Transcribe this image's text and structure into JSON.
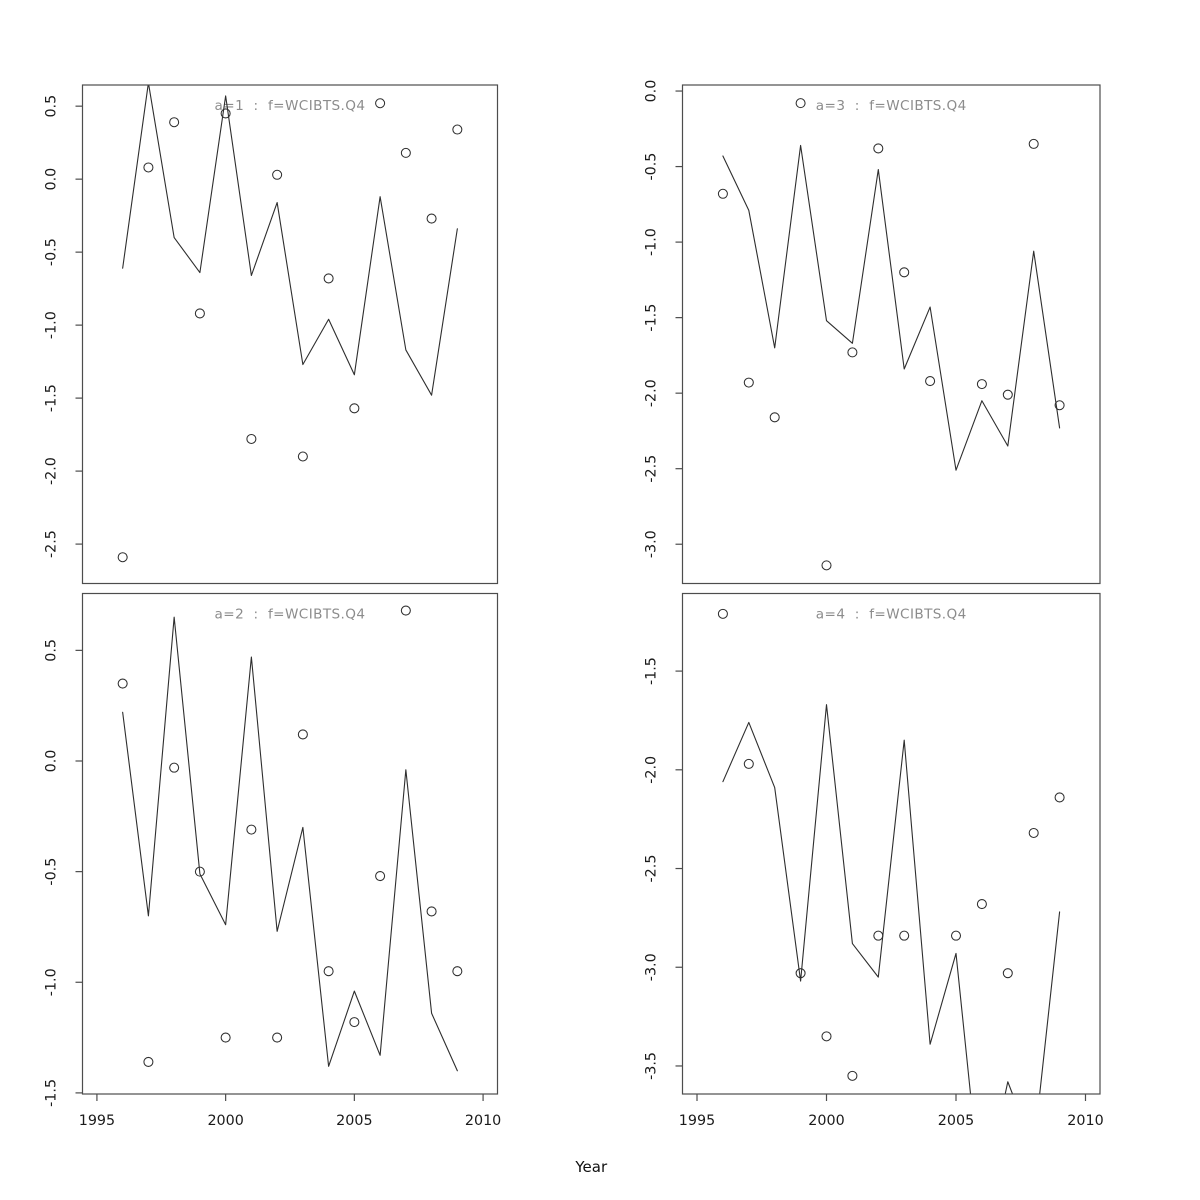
{
  "figure": {
    "xlabel": "Year",
    "background": "#ffffff",
    "colors": {
      "line": "#2e2e2e",
      "point_stroke": "#2e2e2e",
      "box": "#4d4d4d",
      "title_text": "#8c8c8c",
      "tick_text": "#1a1a1a"
    },
    "x_axis": {
      "tick_years": [
        1995,
        2000,
        2005,
        2010
      ],
      "tick_labels": [
        "1995",
        "2000",
        "2005",
        "2010"
      ]
    },
    "years": [
      1996,
      1997,
      1998,
      1999,
      2000,
      2001,
      2002,
      2003,
      2004,
      2005,
      2006,
      2007,
      2008,
      2009
    ]
  },
  "chart_data": [
    {
      "id": "a1",
      "type": "line+scatter",
      "title": "a=1  :  f=WCIBTS.Q4",
      "position": "top-left",
      "xlim": [
        1994.44,
        2010.56
      ],
      "ylim": [
        -2.77,
        0.645
      ],
      "x": [
        1996,
        1997,
        1998,
        1999,
        2000,
        2001,
        2002,
        2003,
        2004,
        2005,
        2006,
        2007,
        2008,
        2009
      ],
      "y_tick_values": [
        0.5,
        0.0,
        -0.5,
        -1.0,
        -1.5,
        -2.0,
        -2.5
      ],
      "y_tick_labels": [
        "0.5",
        "0.0",
        "-0.5",
        "-1.0",
        "-1.5",
        "-2.0",
        "-2.5"
      ],
      "show_x_axis": false,
      "series": [
        {
          "name": "model-line",
          "kind": "line",
          "values": [
            -0.61,
            0.66,
            -0.4,
            -0.64,
            0.57,
            -0.66,
            -0.16,
            -1.27,
            -0.96,
            -1.34,
            -0.12,
            -1.17,
            -1.48,
            -0.34
          ]
        },
        {
          "name": "observed-points",
          "kind": "points",
          "values": [
            -2.59,
            0.08,
            0.39,
            -0.92,
            0.45,
            -1.78,
            0.03,
            -1.9,
            -0.68,
            -1.57,
            0.52,
            0.18,
            -0.27,
            0.34
          ]
        }
      ]
    },
    {
      "id": "a2",
      "type": "line+scatter",
      "title": "a=2  :  f=WCIBTS.Q4",
      "position": "bottom-left",
      "xlim": [
        1994.44,
        2010.56
      ],
      "ylim": [
        -1.505,
        0.757
      ],
      "x": [
        1996,
        1997,
        1998,
        1999,
        2000,
        2001,
        2002,
        2003,
        2004,
        2005,
        2006,
        2007,
        2008,
        2009
      ],
      "y_tick_values": [
        0.5,
        0.0,
        -0.5,
        -1.0,
        -1.5
      ],
      "y_tick_labels": [
        "0.5",
        "0.0",
        "-0.5",
        "-1.0",
        "-1.5"
      ],
      "show_x_axis": true,
      "series": [
        {
          "name": "model-line",
          "kind": "line",
          "values": [
            0.22,
            -0.7,
            0.65,
            -0.51,
            -0.74,
            0.47,
            -0.77,
            -0.3,
            -1.38,
            -1.04,
            -1.33,
            -0.04,
            -1.14,
            -1.4
          ]
        },
        {
          "name": "observed-points",
          "kind": "points",
          "values": [
            0.35,
            -1.36,
            -0.03,
            -0.5,
            -1.25,
            -0.31,
            -1.25,
            0.12,
            -0.95,
            -1.18,
            -0.52,
            0.68,
            -0.68,
            -0.95
          ]
        }
      ]
    },
    {
      "id": "a3",
      "type": "line+scatter",
      "title": "a=3  :  f=WCIBTS.Q4",
      "position": "top-right",
      "xlim": [
        1994.44,
        2010.56
      ],
      "ylim": [
        -3.26,
        0.04
      ],
      "x": [
        1996,
        1997,
        1998,
        1999,
        2000,
        2001,
        2002,
        2003,
        2004,
        2005,
        2006,
        2007,
        2008,
        2009
      ],
      "y_tick_values": [
        0.0,
        -0.5,
        -1.0,
        -1.5,
        -2.0,
        -2.5,
        -3.0
      ],
      "y_tick_labels": [
        "0.0",
        "-0.5",
        "-1.0",
        "-1.5",
        "-2.0",
        "-2.5",
        "-3.0"
      ],
      "show_x_axis": false,
      "series": [
        {
          "name": "model-line",
          "kind": "line",
          "values": [
            -0.43,
            -0.79,
            -1.7,
            -0.36,
            -1.52,
            -1.67,
            -0.52,
            -1.84,
            -1.43,
            -2.51,
            -2.05,
            -2.35,
            -1.06,
            -2.23
          ]
        },
        {
          "name": "observed-points",
          "kind": "points",
          "values": [
            -0.68,
            -1.93,
            -2.16,
            -0.08,
            -3.14,
            -1.73,
            -0.38,
            -1.2,
            -1.92,
            null,
            -1.94,
            -2.01,
            -0.35,
            -2.08
          ]
        }
      ]
    },
    {
      "id": "a4",
      "type": "line+scatter",
      "title": "a=4  :  f=WCIBTS.Q4",
      "position": "bottom-right",
      "xlim": [
        1994.44,
        2010.56
      ],
      "ylim": [
        -3.642,
        -1.107
      ],
      "x": [
        1996,
        1997,
        1998,
        1999,
        2000,
        2001,
        2002,
        2003,
        2004,
        2005,
        2006,
        2007,
        2008,
        2009
      ],
      "y_tick_values": [
        -1.5,
        -2.0,
        -2.5,
        -3.0,
        -3.5
      ],
      "y_tick_labels": [
        "-1.5",
        "-2.0",
        "-2.5",
        "-3.0",
        "-3.5"
      ],
      "show_x_axis": true,
      "series": [
        {
          "name": "model-line",
          "kind": "line",
          "values": [
            -2.06,
            -1.76,
            -2.09,
            -3.07,
            -1.67,
            -2.88,
            -3.05,
            -1.85,
            -3.39,
            -2.93,
            -4.2,
            -3.58,
            -3.92,
            -2.72
          ]
        },
        {
          "name": "observed-points",
          "kind": "points",
          "values": [
            -1.21,
            -1.97,
            null,
            -3.03,
            -3.35,
            -3.55,
            -2.84,
            -2.84,
            null,
            -2.84,
            -2.68,
            -3.03,
            -2.32,
            -2.14
          ]
        }
      ]
    }
  ]
}
